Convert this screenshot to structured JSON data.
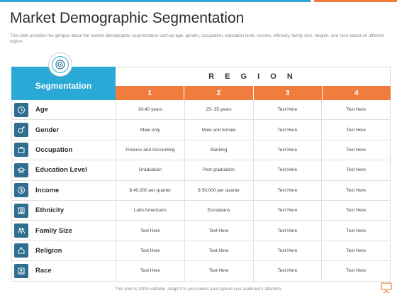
{
  "title": "Market Demographic Segmentation",
  "description": "This slide provides the glimpse about the market demographic segmentation such as age, gender, occupation, education level, income, ethnicity, family size, religion, and race based on different region.",
  "table": {
    "segmentation_label": "Segmentation",
    "region_label": "R E G I O N",
    "region_numbers": [
      "1",
      "2",
      "3",
      "4"
    ],
    "rows": [
      {
        "label": "Age",
        "icon": "age-icon",
        "cells": [
          "30-40 years",
          "25- 35 years",
          "Text Here",
          "Text Here"
        ]
      },
      {
        "label": "Gender",
        "icon": "gender-icon",
        "cells": [
          "Male only",
          "Male and female",
          "Text Here",
          "Text Here"
        ]
      },
      {
        "label": "Occupation",
        "icon": "occupation-icon",
        "cells": [
          "Finance and Accounting",
          "Banking",
          "Text Here",
          "Text Here"
        ]
      },
      {
        "label": "Education Level",
        "icon": "education-icon",
        "cells": [
          "Graduation",
          "Post graduation",
          "Text Here",
          "Text Here"
        ]
      },
      {
        "label": "Income",
        "icon": "income-icon",
        "cells": [
          "$ 40,000 per quarter",
          "$ 50,000 per quarter",
          "Text Here",
          "Text Here"
        ]
      },
      {
        "label": "Ethnicity",
        "icon": "ethnicity-icon",
        "cells": [
          "Latin Americans",
          "Europeans",
          "Text Here",
          "Text Here"
        ]
      },
      {
        "label": "Family Size",
        "icon": "family-icon",
        "cells": [
          "Text Here",
          "Text Here",
          "Text Here",
          "Text Here"
        ]
      },
      {
        "label": "Religion",
        "icon": "religion-icon",
        "cells": [
          "Text Here",
          "Text Here",
          "Text Here",
          "Text Here"
        ]
      },
      {
        "label": "Race",
        "icon": "race-icon",
        "cells": [
          "Text Here",
          "Text Here",
          "Text Here",
          "Text Here"
        ]
      }
    ]
  },
  "footer": "This slide is 100% editable. Adapt it to your needs and capture your audience's attention.",
  "colors": {
    "blue": "#2aa8d6",
    "orange": "#f07d3e",
    "icon_bg": "#2f6e8f"
  }
}
